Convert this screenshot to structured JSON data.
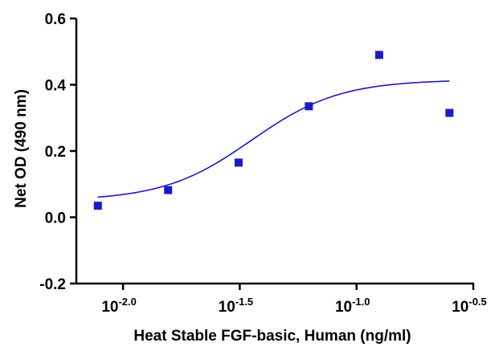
{
  "chart_data": {
    "type": "scatter",
    "xlabel": "Heat Stable FGF-basic, Human (ng/ml)",
    "ylabel": "Net OD (490 nm)",
    "x_scale": "log10",
    "xlim": [
      0.00631,
      0.3162
    ],
    "ylim": [
      -0.2,
      0.6
    ],
    "y_ticks": [
      {
        "value": -0.2,
        "label": "-0.2"
      },
      {
        "value": 0.0,
        "label": "0.0"
      },
      {
        "value": 0.2,
        "label": "0.2"
      },
      {
        "value": 0.4,
        "label": "0.4"
      },
      {
        "value": 0.6,
        "label": "0.6"
      }
    ],
    "x_ticks": [
      {
        "value": 0.01,
        "base": "10",
        "exp": "-2.0"
      },
      {
        "value": 0.03162,
        "base": "10",
        "exp": "-1.5"
      },
      {
        "value": 0.1,
        "base": "10",
        "exp": "-1.0"
      },
      {
        "value": 0.3162,
        "base": "10",
        "exp": "-0.5"
      }
    ],
    "points": [
      {
        "x": 0.0078,
        "y": 0.035
      },
      {
        "x": 0.0156,
        "y": 0.082
      },
      {
        "x": 0.03125,
        "y": 0.165
      },
      {
        "x": 0.0625,
        "y": 0.335
      },
      {
        "x": 0.125,
        "y": 0.49
      },
      {
        "x": 0.25,
        "y": 0.315
      }
    ],
    "fit_curve": {
      "type": "4PL",
      "bottom": 0.05,
      "top": 0.415,
      "ec50": 0.0355,
      "hill": 2.3,
      "x_start": 0.0078,
      "x_end": 0.25
    },
    "grid": false,
    "colors": {
      "series": "#1a1ac8",
      "axis": "#000000"
    }
  }
}
